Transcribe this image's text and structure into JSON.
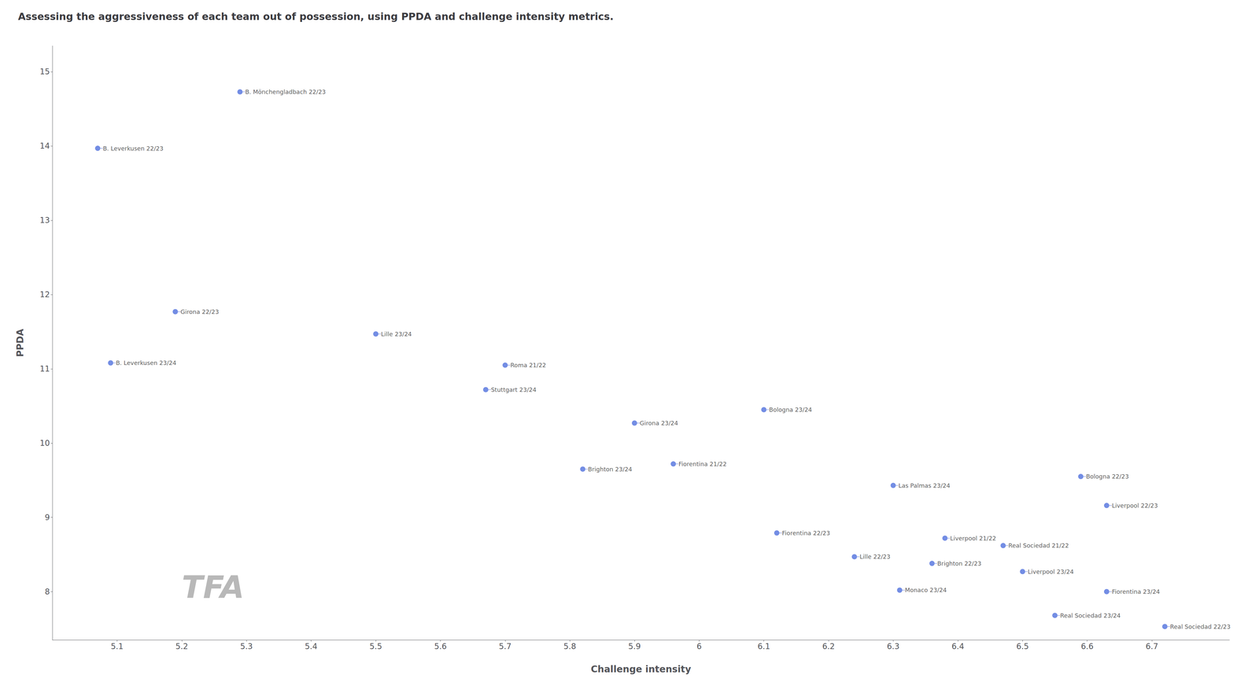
{
  "chart_data": {
    "type": "scatter",
    "title": "Assessing the aggressiveness of each team out of possession, using PPDA and challenge intensity metrics.",
    "xlabel": "Challenge intensity",
    "ylabel": "PPDA",
    "x": [
      5.07,
      5.29,
      5.19,
      5.09,
      5.5,
      5.7,
      5.67,
      5.9,
      5.82,
      5.96,
      6.1,
      6.12,
      6.24,
      6.3,
      6.38,
      6.36,
      6.31,
      6.47,
      6.5,
      6.55,
      6.59,
      6.63,
      6.63,
      6.72
    ],
    "y": [
      13.97,
      14.73,
      11.77,
      11.08,
      11.47,
      11.05,
      10.72,
      10.27,
      9.65,
      9.72,
      10.45,
      8.79,
      8.47,
      9.43,
      8.72,
      8.38,
      8.02,
      8.62,
      8.27,
      7.68,
      9.55,
      9.16,
      8.0,
      7.53
    ],
    "labels": [
      "B. Leverkusen 22/23",
      "B. Mönchengladbach 22/23",
      "Girona 22/23",
      "B. Leverkusen 23/24",
      "Lille 23/24",
      "Roma 21/22",
      "Stuttgart 23/24",
      "Girona 23/24",
      "Brighton 23/24",
      "Fiorentina 21/22",
      "Bologna 23/24",
      "Fiorentina 22/23",
      "Lille 22/23",
      "Las Palmas 23/24",
      "Liverpool 21/22",
      "Brighton 22/23",
      "Monaco 23/24",
      "Real Sociedad 21/22",
      "Liverpool 23/24",
      "Real Sociedad 23/24",
      "Bologna 22/23",
      "Liverpool 22/23",
      "Fiorentina 23/24",
      "Real Sociedad 22/23"
    ],
    "xlim": [
      5.0,
      6.82
    ],
    "ylim": [
      7.35,
      15.35
    ],
    "xticks": [
      5.1,
      5.2,
      5.3,
      5.4,
      5.5,
      5.6,
      5.7,
      5.8,
      5.9,
      6.0,
      6.1,
      6.2,
      6.3,
      6.4,
      6.5,
      6.6,
      6.7
    ],
    "yticks": [
      8,
      9,
      10,
      11,
      12,
      13,
      14,
      15
    ],
    "grid": false,
    "annotations": [
      {
        "text": "TFA",
        "x": 5.2,
        "y": 7.85
      }
    ]
  }
}
